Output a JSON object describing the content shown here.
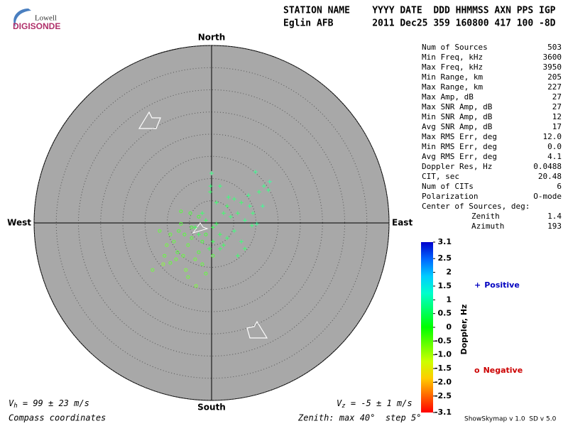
{
  "header": {
    "logo_top": "Lowell",
    "logo_bottom": "DIGISONDE",
    "line1": "STATION NAME    YYYY DATE  DDD HHMMSS AXN PPS IGP",
    "line2": "Eglin AFB       2011 Dec25 359 160800 417 100 -8D"
  },
  "stats": {
    "rows": [
      [
        "Num of Sources",
        503
      ],
      [
        "Min Freq, kHz",
        3600
      ],
      [
        "Max Freq, kHz",
        3950
      ],
      [
        "Min Range, km",
        205
      ],
      [
        "Max Range, km",
        227
      ],
      [
        "Max Amp, dB",
        27
      ],
      [
        "Max SNR Amp, dB",
        27
      ],
      [
        "Min SNR Amp, dB",
        12
      ],
      [
        "Avg SNR Amp, dB",
        17
      ],
      [
        "Max RMS Err, deg",
        "12.0"
      ],
      [
        "Min RMS Err, deg",
        "0.0"
      ],
      [
        "Avg RMS Err, deg",
        4.1
      ],
      [
        "Doppler Res, Hz",
        0.0488
      ],
      [
        "CIT, sec",
        20.48
      ],
      [
        "Num of CITs",
        6
      ],
      [
        "Polarization",
        "O-mode"
      ]
    ],
    "center_label": "Center of Sources, deg:",
    "center_rows": [
      [
        "Zenith",
        1.4
      ],
      [
        "Azimuth",
        193
      ]
    ]
  },
  "chart_data": {
    "type": "skymap",
    "directions": {
      "north": "North",
      "south": "South",
      "east": "East",
      "west": "West"
    },
    "zenith_lim": [
      0,
      40
    ],
    "zenith_ticks": [
      5,
      10,
      15,
      20,
      25,
      30,
      35,
      40
    ],
    "series": [
      {
        "name": "Positive",
        "marker": "+",
        "color": "#0000c0",
        "x": [
          0,
          -0.2,
          -0.3,
          1.9,
          9.9,
          11.8,
          13.1,
          12.8,
          10.7,
          8.3,
          6.7,
          5.1,
          3.5,
          2.7,
          4.3,
          5.9,
          7.5,
          9.1,
          10.2,
          1.1,
          0.3,
          -1.3,
          -2.1,
          1.9,
          3.5,
          6.7,
          7.5,
          5.1,
          2.7,
          0.3,
          8.6,
          11.5,
          9.3,
          -3.7,
          -2.9,
          -0.5,
          1.9,
          5.9,
          3.8,
          1.1
        ],
        "y": [
          11.2,
          8.3,
          7.0,
          8.3,
          11.5,
          8.3,
          9.3,
          7.4,
          7.0,
          6.2,
          4.6,
          5.4,
          3.8,
          2.2,
          1.4,
          2.2,
          0.6,
          -0.6,
          -0.2,
          -0.2,
          -1.0,
          0.6,
          2.2,
          -2.6,
          -3.4,
          -4.2,
          -5.8,
          -1.8,
          -5.0,
          -4.2,
          3.8,
          3.8,
          2.2,
          -1.0,
          -2.6,
          -5.8,
          -5.8,
          -7.4,
          5.8,
          4.6
        ],
        "doppler": [
          0.6,
          0.5,
          0.4,
          0.5,
          0.7,
          0.6,
          0.8,
          0.6,
          0.5,
          0.6,
          0.4,
          0.5,
          0.3,
          0.4,
          0.5,
          0.4,
          0.6,
          0.5,
          0.7,
          0.3,
          0.2,
          0.3,
          0.4,
          0.3,
          0.4,
          0.5,
          0.4,
          0.5,
          0.3,
          0.2,
          0.6,
          0.7,
          0.5,
          0.2,
          0.3,
          0.2,
          0.3,
          0.4,
          0.5,
          0.4
        ]
      },
      {
        "name": "Negative",
        "marker": "o",
        "color": "#cc0000",
        "x": [
          -13.3,
          -9.3,
          -7.7,
          -8.5,
          -6.1,
          -4.5,
          -6.9,
          -5.3,
          -2.9,
          -3.7,
          -5.8,
          -7.4,
          -11.7,
          -10.1,
          -1.3,
          -3.5,
          -6.4,
          -4.5,
          -2.1,
          0.3,
          -8.0,
          -10.6,
          -4.8,
          -2.9,
          -6.9,
          -1.3,
          -9.3,
          -5.3,
          -2.1,
          -10.9
        ],
        "y": [
          -10.6,
          -9.0,
          -6.6,
          -4.2,
          -2.6,
          -1.0,
          -0.2,
          -5.0,
          -6.6,
          -8.2,
          -10.6,
          -1.8,
          -1.8,
          -5.0,
          -11.4,
          -14.2,
          -7.4,
          -3.4,
          -4.2,
          -7.4,
          -8.2,
          -7.4,
          2.2,
          1.4,
          2.6,
          -2.6,
          -2.6,
          -12.2,
          -9.3,
          -9.3
        ],
        "doppler": [
          -0.4,
          -0.3,
          -0.2,
          -0.3,
          -0.2,
          -0.1,
          -0.2,
          -0.3,
          -0.2,
          -0.4,
          -0.5,
          -0.2,
          -0.3,
          -0.4,
          -0.3,
          -0.5,
          -0.3,
          -0.2,
          -0.1,
          -0.2,
          -0.4,
          -0.3,
          -0.1,
          -0.1,
          -0.2,
          -0.1,
          -0.3,
          -0.4,
          -0.3,
          -0.6
        ]
      }
    ],
    "colorbar": {
      "label": "Doppler, Hz",
      "clim": [
        -3.1,
        3.1
      ],
      "ticks": [
        3.1,
        2.5,
        2,
        1.5,
        1,
        0.5,
        0,
        -0.5,
        {
          "value": -1,
          "label": "-1.0"
        },
        -1.5,
        {
          "value": -2,
          "label": "-2.0"
        },
        -2.5,
        -3.1
      ]
    }
  },
  "footer": {
    "vh_symbol": "V",
    "vh_sub": "h",
    "vh_text": " = 99 ± 23 m/s",
    "vz_symbol": "V",
    "vz_sub": "z",
    "vz_text": " = -5 ± 1 m/s",
    "coords": "Compass coordinates",
    "zenith_note": "Zenith: max 40°  step 5°",
    "version": "ShowSkymap v 1.0  SD v 5.0"
  }
}
